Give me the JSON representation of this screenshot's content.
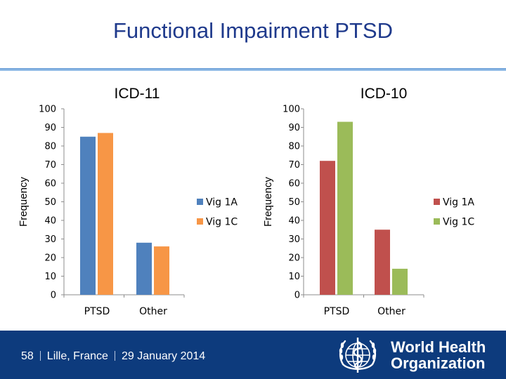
{
  "slide": {
    "title": "Functional Impairment PTSD"
  },
  "colors": {
    "left_series_1": "#4f81bd",
    "left_series_2": "#f79646",
    "right_series_1": "#c0504d",
    "right_series_2": "#9bbb59",
    "footer_bg": "#0d3b7d",
    "title_color": "#1f3a8c"
  },
  "chart_data": [
    {
      "type": "bar",
      "title": "ICD-11",
      "ylabel": "Frequency",
      "xlabel": "",
      "categories": [
        "PTSD",
        "Other"
      ],
      "series": [
        {
          "name": "Vig 1A",
          "values": [
            85,
            28
          ]
        },
        {
          "name": "Vig 1C",
          "values": [
            87,
            26
          ]
        }
      ],
      "ylim": [
        0,
        100
      ],
      "yticks": [
        0,
        10,
        20,
        30,
        40,
        50,
        60,
        70,
        80,
        90,
        100
      ],
      "legend": "right"
    },
    {
      "type": "bar",
      "title": "ICD-10",
      "ylabel": "Frequency",
      "xlabel": "",
      "categories": [
        "PTSD",
        "Other"
      ],
      "series": [
        {
          "name": "Vig 1A",
          "values": [
            72,
            35
          ]
        },
        {
          "name": "Vig 1C",
          "values": [
            93,
            14
          ]
        }
      ],
      "ylim": [
        0,
        100
      ],
      "yticks": [
        0,
        10,
        20,
        30,
        40,
        50,
        60,
        70,
        80,
        90,
        100
      ],
      "legend": "right"
    }
  ],
  "footer": {
    "page_number": "58",
    "location": "Lille, France",
    "date": "29 January 2014",
    "org_line1": "World Health",
    "org_line2": "Organization",
    "logo_icon": "who-emblem-icon"
  }
}
